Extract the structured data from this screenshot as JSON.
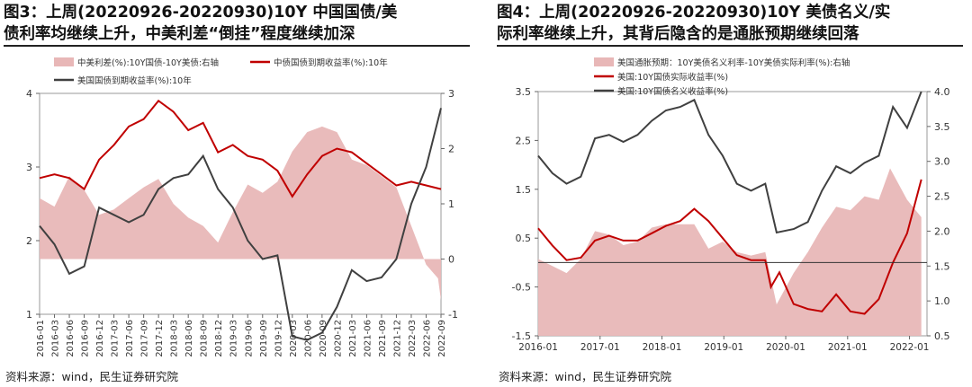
{
  "charts": [
    {
      "id": "left",
      "title_line1": "图3：上周(20220926-20220930)10Y  中国国债/美",
      "title_line2": "债利率均继续上升，中美利差“倒挂”程度继续加深",
      "source": "资料来源：wind，民生证券研究院",
      "chart_data": {
        "type": "line",
        "x_ticks": [
          "2016-01",
          "2016-03",
          "2016-06",
          "2016-09",
          "2016-12",
          "2017-03",
          "2017-06",
          "2017-09",
          "2017-12",
          "2018-03",
          "2018-06",
          "2018-09",
          "2018-12",
          "2019-03",
          "2019-06",
          "2019-09",
          "2019-12",
          "2020-03",
          "2020-06",
          "2020-09",
          "2020-12",
          "2021-03",
          "2021-06",
          "2021-09",
          "2021-12",
          "2022-03",
          "2022-06",
          "2022-09"
        ],
        "y_left": {
          "ticks": [
            "4",
            "3",
            "2",
            "1"
          ],
          "range": [
            1,
            4
          ]
        },
        "y_right": {
          "ticks": [
            "3",
            "2",
            "1",
            "0",
            "-1"
          ],
          "range": [
            -1,
            3
          ]
        },
        "legend": [
          "中美利差(%):10Y国债-10Y美债:右轴",
          "中债国债到期收益率(%):10年",
          "美国国债到期收益率(%):10年"
        ],
        "series": [
          {
            "name": "中美利差(%):10Y国债-10Y美债:右轴",
            "axis": "right",
            "kind": "area",
            "color": "#e8b7b7",
            "points": [
              [
                2016.0,
                1.1
              ],
              [
                2016.25,
                0.95
              ],
              [
                2016.5,
                1.5
              ],
              [
                2016.75,
                1.25
              ],
              [
                2017.0,
                0.8
              ],
              [
                2017.25,
                0.9
              ],
              [
                2017.5,
                1.1
              ],
              [
                2017.75,
                1.3
              ],
              [
                2018.0,
                1.45
              ],
              [
                2018.25,
                1.0
              ],
              [
                2018.5,
                0.75
              ],
              [
                2018.75,
                0.6
              ],
              [
                2019.0,
                0.3
              ],
              [
                2019.25,
                0.85
              ],
              [
                2019.5,
                1.35
              ],
              [
                2019.75,
                1.2
              ],
              [
                2020.0,
                1.4
              ],
              [
                2020.25,
                1.95
              ],
              [
                2020.5,
                2.3
              ],
              [
                2020.75,
                2.4
              ],
              [
                2021.0,
                2.3
              ],
              [
                2021.25,
                1.8
              ],
              [
                2021.5,
                1.7
              ],
              [
                2021.75,
                1.5
              ],
              [
                2022.0,
                1.3
              ],
              [
                2022.25,
                0.6
              ],
              [
                2022.5,
                -0.1
              ],
              [
                2022.7,
                -0.35
              ],
              [
                2022.75,
                -0.75
              ]
            ]
          },
          {
            "name": "中债国债到期收益率(%):10年",
            "axis": "left",
            "kind": "line",
            "color": "#c00000",
            "points": [
              [
                2016.0,
                2.85
              ],
              [
                2016.25,
                2.9
              ],
              [
                2016.5,
                2.85
              ],
              [
                2016.75,
                2.7
              ],
              [
                2017.0,
                3.1
              ],
              [
                2017.25,
                3.3
              ],
              [
                2017.5,
                3.55
              ],
              [
                2017.75,
                3.65
              ],
              [
                2018.0,
                3.9
              ],
              [
                2018.25,
                3.75
              ],
              [
                2018.5,
                3.5
              ],
              [
                2018.75,
                3.6
              ],
              [
                2019.0,
                3.2
              ],
              [
                2019.25,
                3.3
              ],
              [
                2019.5,
                3.15
              ],
              [
                2019.75,
                3.1
              ],
              [
                2020.0,
                2.95
              ],
              [
                2020.25,
                2.6
              ],
              [
                2020.5,
                2.9
              ],
              [
                2020.75,
                3.15
              ],
              [
                2021.0,
                3.25
              ],
              [
                2021.25,
                3.2
              ],
              [
                2021.5,
                3.05
              ],
              [
                2021.75,
                2.9
              ],
              [
                2022.0,
                2.75
              ],
              [
                2022.25,
                2.8
              ],
              [
                2022.5,
                2.75
              ],
              [
                2022.75,
                2.7
              ]
            ]
          },
          {
            "name": "美国国债到期收益率(%):10年",
            "axis": "left",
            "kind": "line",
            "color": "#404040",
            "points": [
              [
                2016.0,
                2.2
              ],
              [
                2016.25,
                1.95
              ],
              [
                2016.5,
                1.55
              ],
              [
                2016.75,
                1.65
              ],
              [
                2017.0,
                2.45
              ],
              [
                2017.25,
                2.35
              ],
              [
                2017.5,
                2.25
              ],
              [
                2017.75,
                2.35
              ],
              [
                2018.0,
                2.7
              ],
              [
                2018.25,
                2.85
              ],
              [
                2018.5,
                2.9
              ],
              [
                2018.75,
                3.15
              ],
              [
                2019.0,
                2.7
              ],
              [
                2019.25,
                2.45
              ],
              [
                2019.5,
                2.0
              ],
              [
                2019.75,
                1.75
              ],
              [
                2020.0,
                1.8
              ],
              [
                2020.25,
                0.7
              ],
              [
                2020.5,
                0.65
              ],
              [
                2020.75,
                0.75
              ],
              [
                2021.0,
                1.1
              ],
              [
                2021.25,
                1.6
              ],
              [
                2021.5,
                1.45
              ],
              [
                2021.75,
                1.5
              ],
              [
                2022.0,
                1.75
              ],
              [
                2022.25,
                2.5
              ],
              [
                2022.5,
                3.0
              ],
              [
                2022.75,
                3.8
              ]
            ]
          }
        ]
      }
    },
    {
      "id": "right",
      "title_line1": "图4：上周(20220926-20220930)10Y  美债名义/实",
      "title_line2": "际利率继续上升，其背后隐含的是通胀预期继续回落",
      "source": "资料来源：wind，民生证券研究院",
      "chart_data": {
        "type": "line",
        "x_ticks": [
          "2016-01",
          "2017-01",
          "2018-01",
          "2019-01",
          "2020-01",
          "2021-01",
          "2022-01"
        ],
        "y_left": {
          "ticks": [
            "3.5",
            "2.5",
            "1.5",
            "0.5",
            "-0.5",
            "-1.5"
          ],
          "range": [
            -1.5,
            3.5
          ]
        },
        "y_right": {
          "ticks": [
            "4.0",
            "3.5",
            "3.0",
            "2.5",
            "2.0",
            "1.5",
            "1.0",
            "0.5"
          ],
          "range": [
            0.5,
            4.0
          ]
        },
        "legend": [
          "美国通胀预期：10Y美债名义利率-10Y美债实际利率(%):右轴",
          "美国:10Y国债实际收益率(%)",
          "美国:10Y国债名义收益率(%)"
        ],
        "series": [
          {
            "name": "美国通胀预期：10Y美债名义利率-10Y美债实际利率(%):右轴",
            "axis": "right",
            "kind": "area",
            "color": "#e8b7b7",
            "points": [
              [
                2016.0,
                1.6
              ],
              [
                2016.25,
                1.5
              ],
              [
                2016.5,
                1.4
              ],
              [
                2016.75,
                1.6
              ],
              [
                2017.0,
                2.0
              ],
              [
                2017.25,
                1.95
              ],
              [
                2017.5,
                1.8
              ],
              [
                2017.75,
                1.85
              ],
              [
                2018.0,
                2.05
              ],
              [
                2018.25,
                2.1
              ],
              [
                2018.5,
                2.1
              ],
              [
                2018.75,
                2.1
              ],
              [
                2019.0,
                1.75
              ],
              [
                2019.25,
                1.85
              ],
              [
                2019.5,
                1.7
              ],
              [
                2019.75,
                1.65
              ],
              [
                2020.0,
                1.7
              ],
              [
                2020.2,
                0.95
              ],
              [
                2020.5,
                1.4
              ],
              [
                2020.75,
                1.7
              ],
              [
                2021.0,
                2.05
              ],
              [
                2021.25,
                2.35
              ],
              [
                2021.5,
                2.3
              ],
              [
                2021.75,
                2.5
              ],
              [
                2022.0,
                2.45
              ],
              [
                2022.2,
                2.9
              ],
              [
                2022.5,
                2.45
              ],
              [
                2022.75,
                2.2
              ]
            ]
          },
          {
            "name": "美国:10Y国债实际收益率(%)",
            "axis": "left",
            "kind": "line",
            "color": "#c00000",
            "points": [
              [
                2016.0,
                0.7
              ],
              [
                2016.25,
                0.35
              ],
              [
                2016.5,
                0.05
              ],
              [
                2016.75,
                0.1
              ],
              [
                2017.0,
                0.45
              ],
              [
                2017.25,
                0.55
              ],
              [
                2017.5,
                0.45
              ],
              [
                2017.75,
                0.45
              ],
              [
                2018.0,
                0.6
              ],
              [
                2018.25,
                0.75
              ],
              [
                2018.5,
                0.85
              ],
              [
                2018.75,
                1.1
              ],
              [
                2019.0,
                0.85
              ],
              [
                2019.25,
                0.5
              ],
              [
                2019.5,
                0.15
              ],
              [
                2019.75,
                0.05
              ],
              [
                2020.0,
                0.05
              ],
              [
                2020.1,
                -0.5
              ],
              [
                2020.25,
                -0.2
              ],
              [
                2020.5,
                -0.85
              ],
              [
                2020.75,
                -0.95
              ],
              [
                2021.0,
                -1.0
              ],
              [
                2021.25,
                -0.65
              ],
              [
                2021.5,
                -1.0
              ],
              [
                2021.75,
                -1.05
              ],
              [
                2022.0,
                -0.75
              ],
              [
                2022.25,
                0.0
              ],
              [
                2022.5,
                0.6
              ],
              [
                2022.75,
                1.7
              ]
            ]
          },
          {
            "name": "美国:10Y国债名义收益率(%)",
            "axis": "right",
            "kind": "line",
            "color": "#404040",
            "points": [
              [
                2016.0,
                3.08
              ],
              [
                2016.25,
                2.83
              ],
              [
                2016.5,
                2.68
              ],
              [
                2016.75,
                2.78
              ],
              [
                2017.0,
                3.33
              ],
              [
                2017.25,
                3.38
              ],
              [
                2017.5,
                3.28
              ],
              [
                2017.75,
                3.38
              ],
              [
                2018.0,
                3.58
              ],
              [
                2018.25,
                3.73
              ],
              [
                2018.5,
                3.78
              ],
              [
                2018.75,
                3.88
              ],
              [
                2019.0,
                3.38
              ],
              [
                2019.25,
                3.08
              ],
              [
                2019.5,
                2.68
              ],
              [
                2019.75,
                2.58
              ],
              [
                2020.0,
                2.68
              ],
              [
                2020.2,
                1.98
              ],
              [
                2020.5,
                2.03
              ],
              [
                2020.75,
                2.13
              ],
              [
                2021.0,
                2.58
              ],
              [
                2021.25,
                2.93
              ],
              [
                2021.5,
                2.83
              ],
              [
                2021.75,
                2.98
              ],
              [
                2022.0,
                3.08
              ],
              [
                2022.25,
                3.78
              ],
              [
                2022.5,
                3.48
              ],
              [
                2022.75,
                4.0
              ]
            ]
          }
        ]
      }
    }
  ]
}
